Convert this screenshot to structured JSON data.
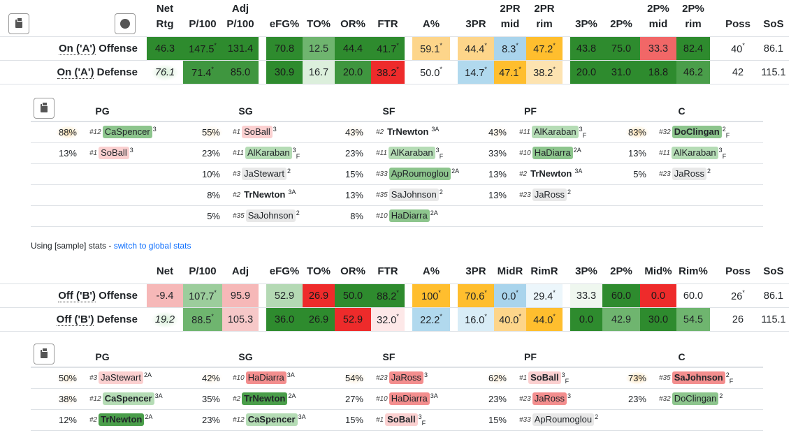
{
  "tables": [
    {
      "id": "A",
      "headers": [
        "Net Rtg",
        "P/100",
        "Adj P/100",
        "",
        "eFG%",
        "TO%",
        "OR%",
        "FTR",
        "",
        "A%",
        "",
        "3PR",
        "2PR mid",
        "2PR rim",
        "",
        "3P%",
        "2P%",
        "2P% mid",
        "2P% rim",
        "",
        "Poss",
        "SoS"
      ],
      "rows": [
        {
          "label_pre": "On ('A')",
          "label_post": " Offense",
          "cells": [
            {
              "v": "46.3",
              "bg": "#2e8b2e"
            },
            {
              "v": "147.5",
              "s": "*",
              "bg": "#2e8b2e"
            },
            {
              "v": "131.4",
              "bg": "#2e8b2e"
            },
            null,
            {
              "v": "70.8",
              "bg": "#2e8b2e"
            },
            {
              "v": "12.5",
              "bg": "#6fb56f"
            },
            {
              "v": "44.4",
              "bg": "#2e8b2e"
            },
            {
              "v": "41.7",
              "s": "*",
              "bg": "#2e8b2e"
            },
            null,
            {
              "v": "59.1",
              "s": "*",
              "bg": "#fdd58a"
            },
            null,
            {
              "v": "44.4",
              "s": "*",
              "bg": "#fdd58a"
            },
            {
              "v": "8.3",
              "s": "*",
              "bg": "#a9d4ec"
            },
            {
              "v": "47.2",
              "s": "*",
              "bg": "#ffbe2e"
            },
            null,
            {
              "v": "43.8",
              "bg": "#2e8b2e"
            },
            {
              "v": "75.0",
              "bg": "#2e8b2e"
            },
            {
              "v": "33.3",
              "bg": "#f16767"
            },
            {
              "v": "82.4",
              "bg": "#2e8b2e"
            },
            null,
            {
              "v": "40",
              "s": "*"
            },
            {
              "v": "86.1"
            }
          ]
        },
        {
          "label_pre": "On ('A')",
          "label_post": " Defense",
          "cells": [
            {
              "v": "76.1",
              "nr": true
            },
            {
              "v": "71.4",
              "s": "*",
              "bg": "#3f963f"
            },
            {
              "v": "85.0",
              "bg": "#3f963f"
            },
            null,
            {
              "v": "30.9",
              "bg": "#2e8b2e"
            },
            {
              "v": "16.7",
              "bg": "#dcefdc"
            },
            {
              "v": "20.0",
              "bg": "#3f963f"
            },
            {
              "v": "38.2",
              "s": "*",
              "bg": "#ee2b2b"
            },
            null,
            {
              "v": "50.0",
              "s": "*"
            },
            null,
            {
              "v": "14.7",
              "s": "*",
              "bg": "#b1d9ee"
            },
            {
              "v": "47.1",
              "s": "*",
              "bg": "#ffbe2e"
            },
            {
              "v": "38.2",
              "s": "*",
              "bg": "#fde3b0"
            },
            null,
            {
              "v": "20.0",
              "bg": "#2e8b2e"
            },
            {
              "v": "31.0",
              "bg": "#2e8b2e"
            },
            {
              "v": "18.8",
              "bg": "#2e8b2e"
            },
            {
              "v": "46.2",
              "bg": "#4a9e4a"
            },
            null,
            {
              "v": "42"
            },
            {
              "v": "115.1"
            }
          ]
        }
      ]
    },
    {
      "id": "B",
      "headers": [
        "Net",
        "P/100",
        "Adj",
        "",
        "eFG%",
        "TO%",
        "OR%",
        "FTR",
        "",
        "A%",
        "",
        "3PR",
        "MidR",
        "RimR",
        "",
        "3P%",
        "2P%",
        "Mid%",
        "Rim%",
        "",
        "Poss",
        "SoS"
      ],
      "rows": [
        {
          "label_pre": "Off ('B')",
          "label_post": " Offense",
          "cells": [
            {
              "v": "-9.4",
              "bg": "#f6b8b8"
            },
            {
              "v": "107.7",
              "s": "*",
              "bg": "#9ccd9c"
            },
            {
              "v": "95.9",
              "bg": "#f6b8b8"
            },
            null,
            {
              "v": "52.9",
              "bg": "#b4d9b4"
            },
            {
              "v": "26.9",
              "bg": "#ee2b2b"
            },
            {
              "v": "50.0",
              "bg": "#2e8b2e"
            },
            {
              "v": "88.2",
              "s": "*",
              "bg": "#2e8b2e"
            },
            null,
            {
              "v": "100",
              "s": "*",
              "bg": "#ffbe2e"
            },
            null,
            {
              "v": "70.6",
              "s": "*",
              "bg": "#ffbe2e"
            },
            {
              "v": "0.0",
              "s": "*",
              "bg": "#a9d4ec"
            },
            {
              "v": "29.4",
              "s": "*",
              "bg": "#ecf6fb"
            },
            null,
            {
              "v": "33.3",
              "bg": "#eff7ef"
            },
            {
              "v": "60.0",
              "bg": "#2e8b2e"
            },
            {
              "v": "0.0",
              "bg": "#ee2b2b"
            },
            {
              "v": "60.0"
            },
            null,
            {
              "v": "26",
              "s": "*"
            },
            {
              "v": "86.1"
            }
          ]
        },
        {
          "label_pre": "Off ('B')",
          "label_post": " Defense",
          "cells": [
            {
              "v": "19.2",
              "nr": true
            },
            {
              "v": "88.5",
              "s": "*",
              "bg": "#6fb56f"
            },
            {
              "v": "105.3",
              "bg": "#f6c8c8"
            },
            null,
            {
              "v": "36.0",
              "bg": "#2e8b2e"
            },
            {
              "v": "26.9",
              "bg": "#2e8b2e"
            },
            {
              "v": "52.9",
              "bg": "#ee2b2b"
            },
            {
              "v": "32.0",
              "s": "*",
              "bg": "#fde8e8"
            },
            null,
            {
              "v": "22.2",
              "s": "*",
              "bg": "#b1d9ee"
            },
            null,
            {
              "v": "16.0",
              "s": "*",
              "bg": "#d8ecf6"
            },
            {
              "v": "40.0",
              "s": "*",
              "bg": "#fdd58a"
            },
            {
              "v": "44.0",
              "s": "*",
              "bg": "#ffbe2e"
            },
            null,
            {
              "v": "0.0",
              "bg": "#2e8b2e"
            },
            {
              "v": "42.9",
              "bg": "#6fb56f"
            },
            {
              "v": "30.0",
              "bg": "#2e8b2e"
            },
            {
              "v": "54.5",
              "bg": "#6fb56f"
            },
            null,
            {
              "v": "26"
            },
            {
              "v": "115.1"
            }
          ]
        }
      ]
    }
  ],
  "lineups": [
    {
      "id": "A",
      "positions": [
        "PG",
        "SG",
        "SF",
        "PF",
        "C"
      ],
      "cols": [
        [
          {
            "p": "88%",
            "g": "#fde0b0",
            "n": "#12",
            "name": "CaSpencer",
            "bg": "#8dc58d",
            "b": false,
            "sup": "3",
            "f": ""
          },
          {
            "p": "13%",
            "n": "#1",
            "name": "SoBall",
            "bg": "#fbd0d0",
            "b": false,
            "sup": "3",
            "f": ""
          }
        ],
        [
          {
            "p": "55%",
            "g": "#fdeed8",
            "n": "#1",
            "name": "SoBall",
            "bg": "#fbd0d0",
            "b": false,
            "sup": "3",
            "f": ""
          },
          {
            "p": "23%",
            "n": "#11",
            "name": "AlKaraban",
            "bg": "#b5dcb5",
            "b": false,
            "sup": "3",
            "f": "F"
          },
          {
            "p": "10%",
            "n": "#3",
            "name": "JaStewart",
            "bg": "#e8e8e8",
            "b": false,
            "sup": "2",
            "f": ""
          },
          {
            "p": "8%",
            "n": "#2",
            "name": "TrNewton",
            "bg": "",
            "b": true,
            "sup": "3A",
            "f": ""
          },
          {
            "p": "5%",
            "n": "#35",
            "name": "SaJohnson",
            "bg": "#e8e8e8",
            "b": false,
            "sup": "2",
            "f": ""
          }
        ],
        [
          {
            "p": "43%",
            "g": "#fdf3e4",
            "n": "#2",
            "name": "TrNewton",
            "bg": "",
            "b": true,
            "sup": "3A",
            "f": ""
          },
          {
            "p": "23%",
            "n": "#11",
            "name": "AlKaraban",
            "bg": "#b5dcb5",
            "b": false,
            "sup": "3",
            "f": "F"
          },
          {
            "p": "15%",
            "n": "#33",
            "name": "ApRoumoglou",
            "bg": "#8dc58d",
            "b": false,
            "sup": "2A",
            "f": ""
          },
          {
            "p": "13%",
            "n": "#35",
            "name": "SaJohnson",
            "bg": "#e8e8e8",
            "b": false,
            "sup": "2",
            "f": ""
          },
          {
            "p": "8%",
            "n": "#10",
            "name": "HaDiarra",
            "bg": "#8dc58d",
            "b": false,
            "sup": "2A",
            "f": ""
          }
        ],
        [
          {
            "p": "43%",
            "g": "#fdf3e4",
            "n": "#11",
            "name": "AlKaraban",
            "bg": "#b5dcb5",
            "b": false,
            "sup": "3",
            "f": "F"
          },
          {
            "p": "33%",
            "n": "#10",
            "name": "HaDiarra",
            "bg": "#8dc58d",
            "b": false,
            "sup": "2A",
            "f": ""
          },
          {
            "p": "13%",
            "n": "#2",
            "name": "TrNewton",
            "bg": "",
            "b": true,
            "sup": "3A",
            "f": ""
          },
          {
            "p": "13%",
            "n": "#23",
            "name": "JaRoss",
            "bg": "#e8e8e8",
            "b": false,
            "sup": "2",
            "f": ""
          }
        ],
        [
          {
            "p": "83%",
            "g": "#fde0b0",
            "n": "#32",
            "name": "DoClingan",
            "bg": "#8dc58d",
            "b": true,
            "sup": "2",
            "f": "F"
          },
          {
            "p": "13%",
            "n": "#11",
            "name": "AlKaraban",
            "bg": "#b5dcb5",
            "b": false,
            "sup": "3",
            "f": "F"
          },
          {
            "p": "5%",
            "n": "#23",
            "name": "JaRoss",
            "bg": "#e8e8e8",
            "b": false,
            "sup": "2",
            "f": ""
          }
        ]
      ]
    },
    {
      "id": "B",
      "positions": [
        "PG",
        "SG",
        "SF",
        "PF",
        "C"
      ],
      "cols": [
        [
          {
            "p": "50%",
            "g": "#fdeed8",
            "n": "#3",
            "name": "JaStewart",
            "bg": "#fbd0d0",
            "b": false,
            "sup": "2A",
            "f": ""
          },
          {
            "p": "38%",
            "g": "#fdf3e4",
            "n": "#12",
            "name": "CaSpencer",
            "bg": "#b5dcb5",
            "b": true,
            "sup": "3A",
            "f": ""
          },
          {
            "p": "12%",
            "n": "#2",
            "name": "TrNewton",
            "bg": "#4a9e4a",
            "b": true,
            "sup": "2A",
            "f": ""
          }
        ],
        [
          {
            "p": "42%",
            "g": "#fdf3e4",
            "n": "#10",
            "name": "HaDiarra",
            "bg": "#f38e8e",
            "b": false,
            "sup": "3A",
            "f": ""
          },
          {
            "p": "35%",
            "n": "#2",
            "name": "TrNewton",
            "bg": "#4a9e4a",
            "b": true,
            "sup": "2A",
            "f": ""
          },
          {
            "p": "23%",
            "n": "#12",
            "name": "CaSpencer",
            "bg": "#b5dcb5",
            "b": true,
            "sup": "3A",
            "f": ""
          }
        ],
        [
          {
            "p": "54%",
            "g": "#fdeed8",
            "n": "#23",
            "name": "JaRoss",
            "bg": "#f38e8e",
            "b": false,
            "sup": "3",
            "f": ""
          },
          {
            "p": "27%",
            "n": "#10",
            "name": "HaDiarra",
            "bg": "#f38e8e",
            "b": false,
            "sup": "3A",
            "f": ""
          },
          {
            "p": "15%",
            "n": "#1",
            "name": "SoBall",
            "bg": "#fbd0d0",
            "b": true,
            "sup": "3",
            "f": "F"
          }
        ],
        [
          {
            "p": "62%",
            "g": "#fdeed8",
            "n": "#1",
            "name": "SoBall",
            "bg": "#fbd0d0",
            "b": true,
            "sup": "3",
            "f": "F"
          },
          {
            "p": "23%",
            "n": "#23",
            "name": "JaRoss",
            "bg": "#f38e8e",
            "b": false,
            "sup": "3",
            "f": ""
          },
          {
            "p": "15%",
            "n": "#33",
            "name": "ApRoumoglou",
            "bg": "#e8e8e8",
            "b": false,
            "sup": "2",
            "f": ""
          }
        ],
        [
          {
            "p": "73%",
            "g": "#fde0b0",
            "n": "#35",
            "name": "SaJohnson",
            "bg": "#f38e8e",
            "b": true,
            "sup": "2",
            "f": "F"
          },
          {
            "p": "23%",
            "n": "#32",
            "name": "DoClingan",
            "bg": "#8dc58d",
            "b": false,
            "sup": "2",
            "f": ""
          }
        ]
      ]
    }
  ],
  "note": {
    "prefix": "Using [sample] stats - ",
    "link": "switch to global stats"
  }
}
